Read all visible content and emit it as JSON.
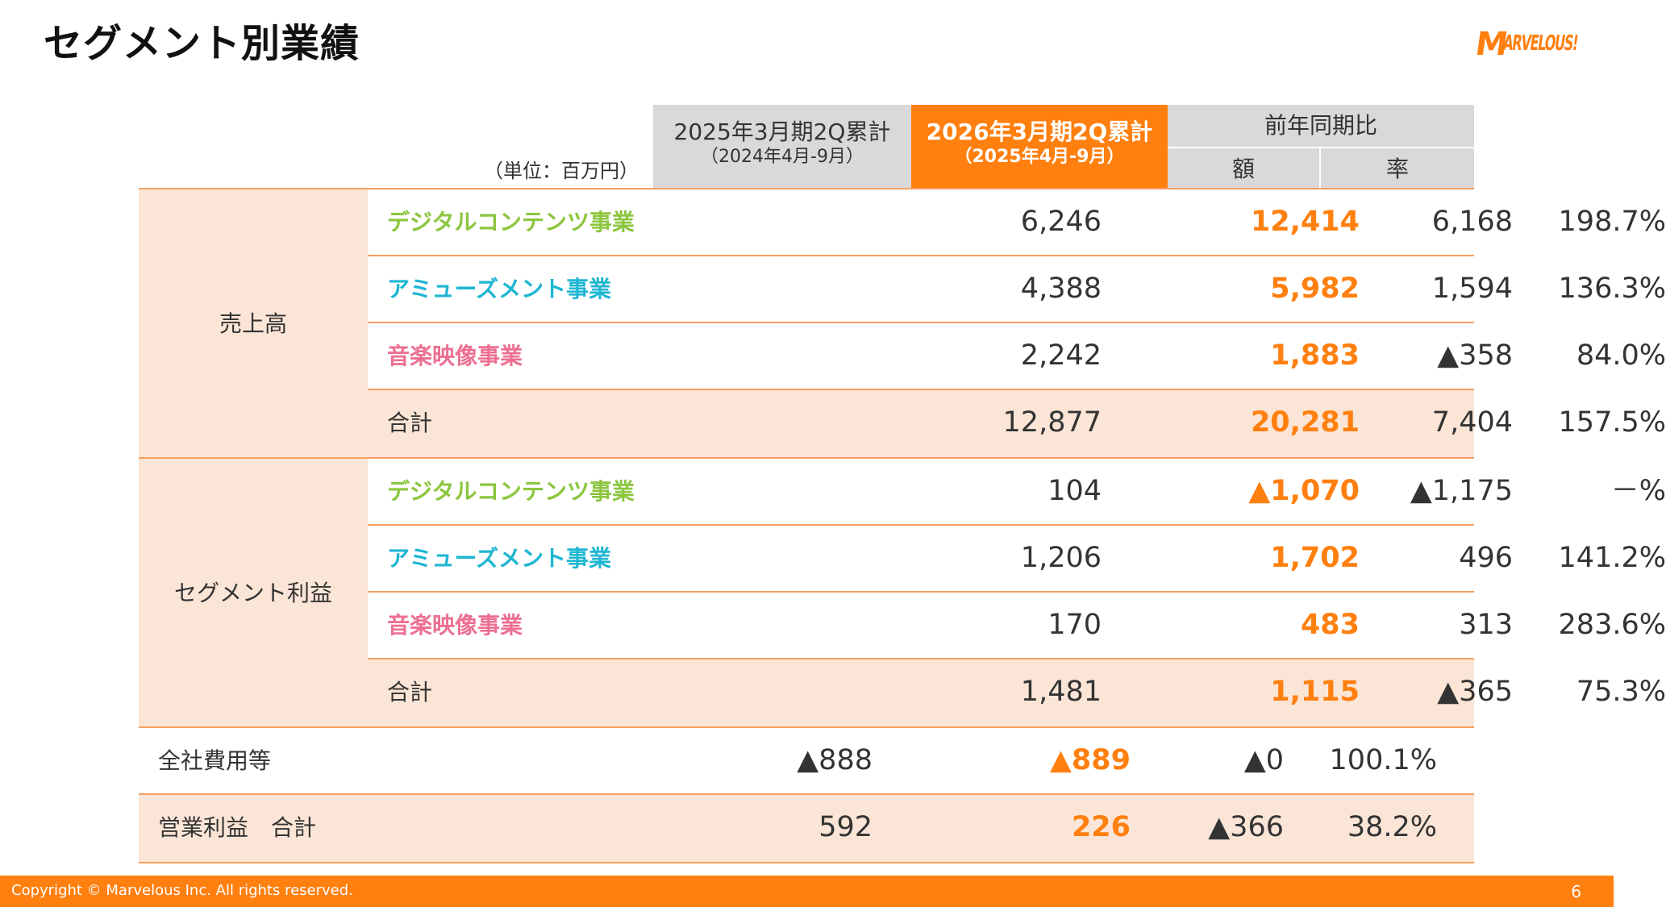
{
  "page": {
    "title": "セグメント別業績",
    "page_number": "6",
    "copyright": "Copyright © Marvelous Inc. All rights reserved."
  },
  "logo": {
    "text": "MARVELOUS!",
    "color": "#ff7f0f"
  },
  "colors": {
    "accent": "#ff7f0f",
    "shade": "#fbe5d6",
    "header_gray": "#d9d9d9",
    "digital": "#8cc63f",
    "amusement": "#1fb6d3",
    "music": "#ec6f92"
  },
  "header": {
    "unit": "（単位：百万円）",
    "prev_main": "2025年3月期2Q累計",
    "prev_sub": "（2024年4月-9月）",
    "cur_main": "2026年3月期2Q累計",
    "cur_sub": "（2025年4月-9月）",
    "yoy": "前年同期比",
    "amount": "額",
    "rate": "率"
  },
  "groups": {
    "sales": "売上高",
    "segment_profit": "セグメント利益"
  },
  "rows": [
    {
      "label": "デジタルコンテンツ事業",
      "prev": "6,246",
      "cur": "12,414",
      "amt": "6,168",
      "rate": "198.7%"
    },
    {
      "label": "アミューズメント事業",
      "prev": "4,388",
      "cur": "5,982",
      "amt": "1,594",
      "rate": "136.3%"
    },
    {
      "label": "音楽映像事業",
      "prev": "2,242",
      "cur": "1,883",
      "amt": "▲358",
      "rate": "84.0%"
    },
    {
      "label": "合計",
      "prev": "12,877",
      "cur": "20,281",
      "amt": "7,404",
      "rate": "157.5%"
    },
    {
      "label": "デジタルコンテンツ事業",
      "prev": "104",
      "cur": "▲1,070",
      "amt": "▲1,175",
      "rate": "－%"
    },
    {
      "label": "アミューズメント事業",
      "prev": "1,206",
      "cur": "1,702",
      "amt": "496",
      "rate": "141.2%"
    },
    {
      "label": "音楽映像事業",
      "prev": "170",
      "cur": "483",
      "amt": "313",
      "rate": "283.6%"
    },
    {
      "label": "合計",
      "prev": "1,481",
      "cur": "1,115",
      "amt": "▲365",
      "rate": "75.3%"
    },
    {
      "label": "全社費用等",
      "prev": "▲888",
      "cur": "▲889",
      "amt": "▲0",
      "rate": "100.1%"
    },
    {
      "label": "営業利益　合計",
      "prev": "592",
      "cur": "226",
      "amt": "▲366",
      "rate": "38.2%"
    }
  ]
}
